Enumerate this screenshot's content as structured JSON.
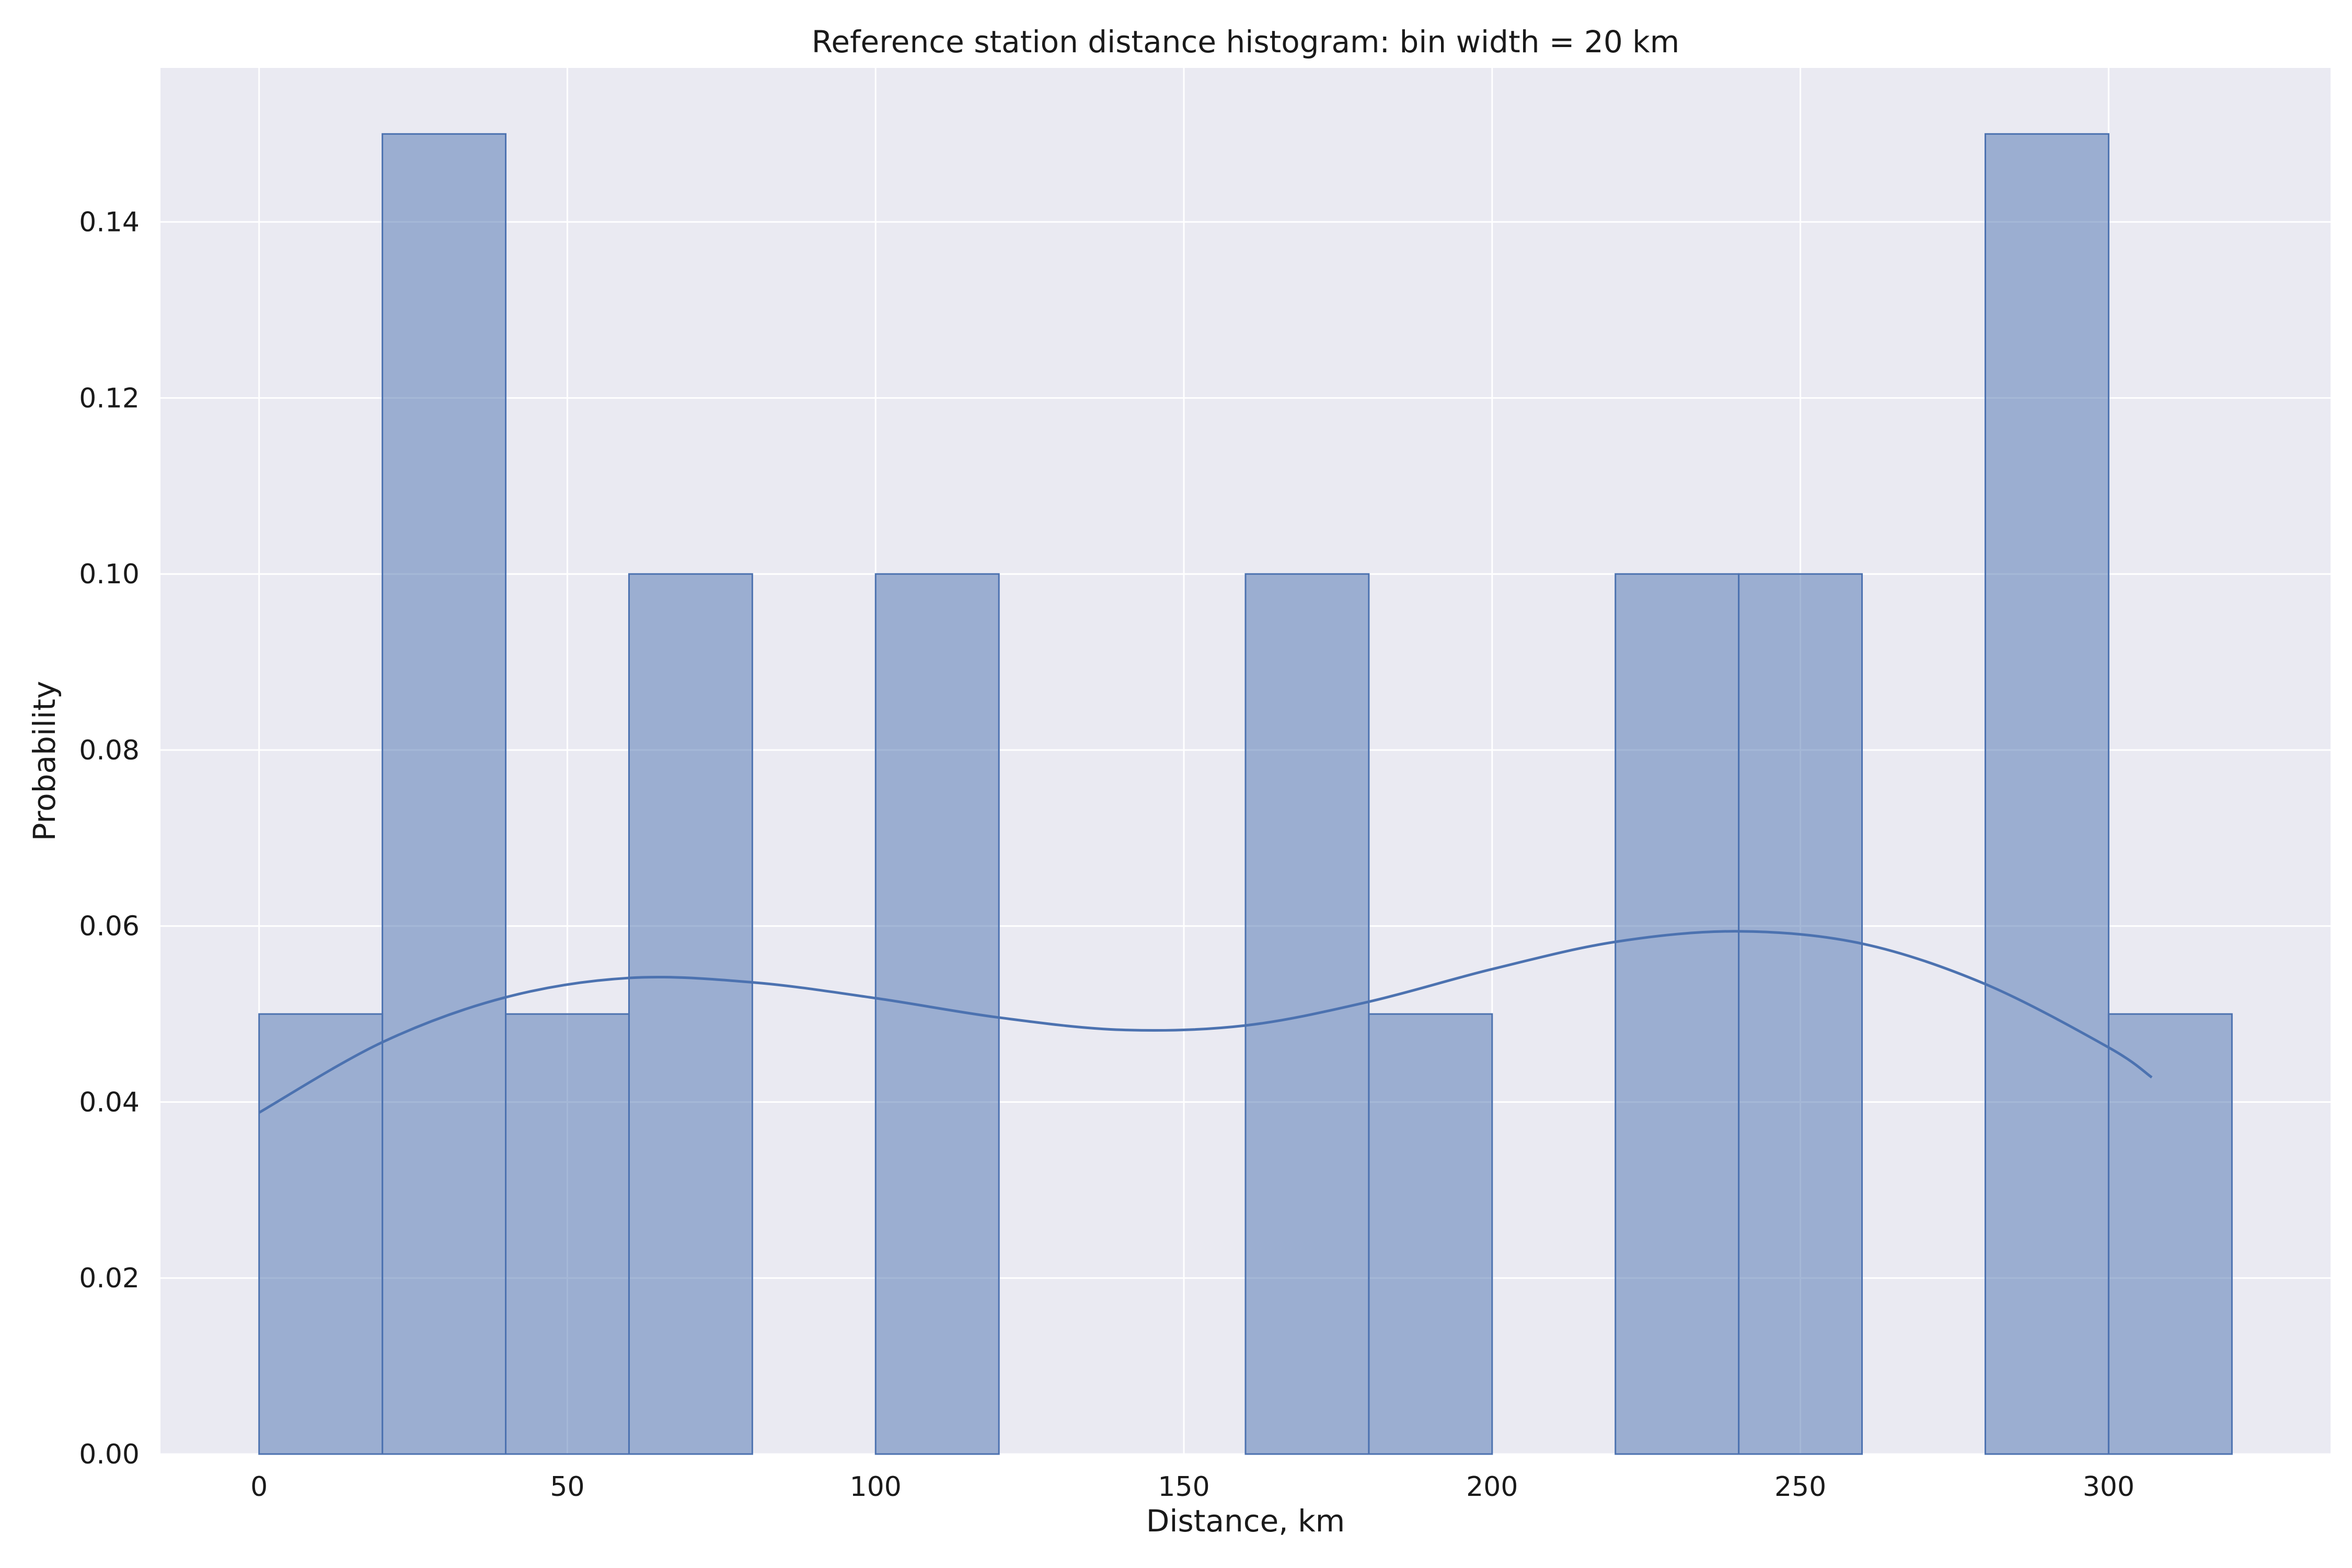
{
  "chart_data": {
    "type": "bar",
    "title": "Reference station distance histogram: bin width = 20 km",
    "xlabel": "Distance, km",
    "ylabel": "Probability",
    "xlim": [
      -16,
      336
    ],
    "ylim": [
      0,
      0.1575
    ],
    "xticks": [
      0,
      50,
      100,
      150,
      200,
      250,
      300
    ],
    "yticks": [
      0.0,
      0.02,
      0.04,
      0.06,
      0.08,
      0.1,
      0.12,
      0.14
    ],
    "ytick_labels": [
      "0.00",
      "0.02",
      "0.04",
      "0.06",
      "0.08",
      "0.10",
      "0.12",
      "0.14"
    ],
    "bin_width": 20,
    "bins": [
      {
        "x0": 0,
        "x1": 20,
        "value": 0.05
      },
      {
        "x0": 20,
        "x1": 40,
        "value": 0.15
      },
      {
        "x0": 40,
        "x1": 60,
        "value": 0.05
      },
      {
        "x0": 60,
        "x1": 80,
        "value": 0.1
      },
      {
        "x0": 80,
        "x1": 100,
        "value": 0.0
      },
      {
        "x0": 100,
        "x1": 120,
        "value": 0.1
      },
      {
        "x0": 120,
        "x1": 140,
        "value": 0.0
      },
      {
        "x0": 140,
        "x1": 160,
        "value": 0.0
      },
      {
        "x0": 160,
        "x1": 180,
        "value": 0.1
      },
      {
        "x0": 180,
        "x1": 200,
        "value": 0.05
      },
      {
        "x0": 200,
        "x1": 220,
        "value": 0.0
      },
      {
        "x0": 220,
        "x1": 240,
        "value": 0.1
      },
      {
        "x0": 240,
        "x1": 260,
        "value": 0.1
      },
      {
        "x0": 260,
        "x1": 280,
        "value": 0.0
      },
      {
        "x0": 280,
        "x1": 300,
        "value": 0.15
      },
      {
        "x0": 300,
        "x1": 320,
        "value": 0.05
      }
    ],
    "kde": {
      "x": [
        0,
        20,
        40,
        60,
        80,
        100,
        120,
        140,
        160,
        180,
        200,
        220,
        240,
        260,
        280,
        300,
        307
      ],
      "y": [
        0.0388,
        0.0468,
        0.0519,
        0.0541,
        0.0536,
        0.0518,
        0.0496,
        0.0482,
        0.0487,
        0.0514,
        0.0551,
        0.0582,
        0.0594,
        0.058,
        0.0534,
        0.0462,
        0.0428
      ]
    },
    "grid": true,
    "colors": {
      "bar": "#4c72b0",
      "kde": "#4c72b0",
      "background": "#eaeaf2",
      "grid": "#ffffff"
    }
  }
}
